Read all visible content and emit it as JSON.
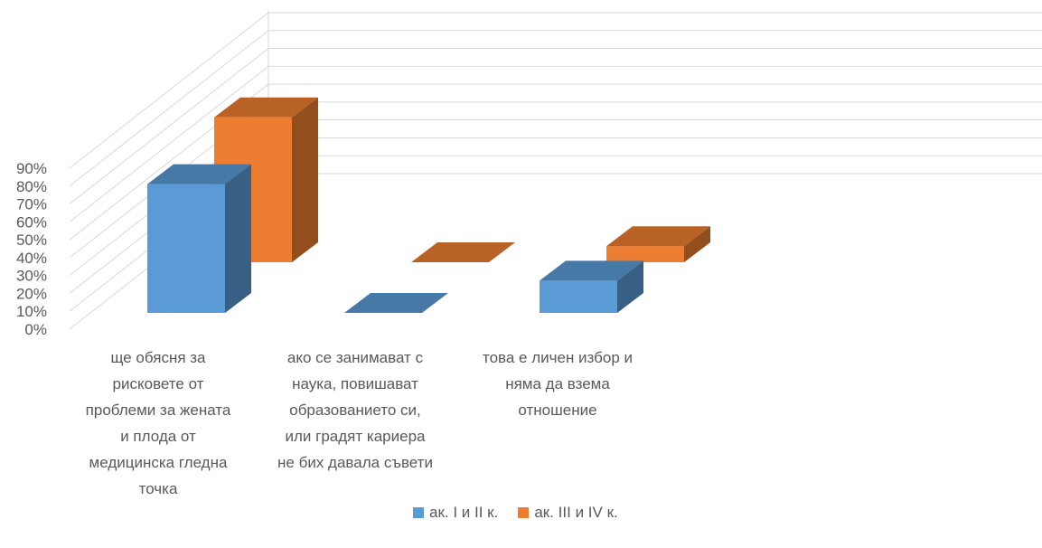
{
  "chart_data": {
    "type": "bar",
    "categories": [
      "ще обясня за рисковете от проблеми за жената и плода от медицинска гледна точка",
      "ако се занимават с наука, повишават образованието си, или градят кариера не бих давала съвети",
      "това е личен избор и няма да взема отношение"
    ],
    "category_lines": [
      [
        "ще обясня за",
        "рисковете от",
        "проблеми за жената",
        "и плода от",
        "медицинска гледна",
        "точка"
      ],
      [
        "ако се занимават с",
        "наука, повишават",
        "образованието си,",
        "или градят кариера",
        "не бих давала съвети"
      ],
      [
        "това е личен избор и",
        "няма да взема",
        "отношение"
      ]
    ],
    "series": [
      {
        "name": "ак. I и II к.",
        "color": "#5B9BD5",
        "values": [
          80,
          0,
          20
        ]
      },
      {
        "name": "ак. III и IV к.",
        "color": "#ED7D31",
        "values": [
          90,
          0,
          10
        ]
      }
    ],
    "yticks": [
      "0%",
      "10%",
      "20%",
      "30%",
      "40%",
      "50%",
      "60%",
      "70%",
      "80%",
      "90%"
    ],
    "ylim": [
      0,
      90
    ],
    "grid": true,
    "legend_position": "bottom",
    "projection": "3d"
  }
}
